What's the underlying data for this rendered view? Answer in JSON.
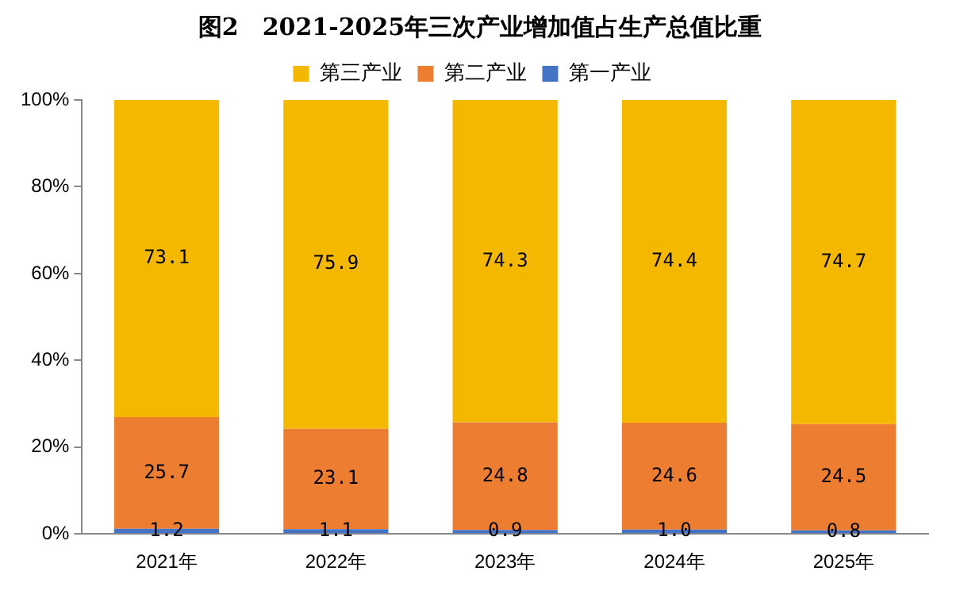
{
  "chart_data": {
    "type": "bar",
    "title": "图2　2021-2025年三次产业增加值占生产总值比重",
    "categories": [
      "2021年",
      "2022年",
      "2023年",
      "2024年",
      "2025年"
    ],
    "stacked": true,
    "legend": "top",
    "grid": false,
    "series": [
      {
        "name": "第一产业",
        "color": "#4472c4",
        "values": [
          1.2,
          1.1,
          0.9,
          1.0,
          0.8
        ],
        "value_labels": [
          "1.2",
          "1.1",
          "0.9",
          "1.0",
          "0.8"
        ]
      },
      {
        "name": "第二产业",
        "color": "#ed7d31",
        "values": [
          25.7,
          23.1,
          24.8,
          24.6,
          24.5
        ],
        "value_labels": [
          "25.7",
          "23.1",
          "24.8",
          "24.6",
          "24.5"
        ]
      },
      {
        "name": "第三产业",
        "color": "#f5b800",
        "values": [
          73.1,
          75.9,
          74.3,
          74.4,
          74.7
        ],
        "value_labels": [
          "73.1",
          "75.9",
          "74.3",
          "74.4",
          "74.7"
        ]
      }
    ],
    "ylim": [
      0,
      100
    ],
    "yticks": [
      {
        "value": 0,
        "label": "0%"
      },
      {
        "value": 20,
        "label": "20%"
      },
      {
        "value": 40,
        "label": "40%"
      },
      {
        "value": 60,
        "label": "60%"
      },
      {
        "value": 80,
        "label": "80%"
      },
      {
        "value": 100,
        "label": "100%"
      }
    ]
  }
}
